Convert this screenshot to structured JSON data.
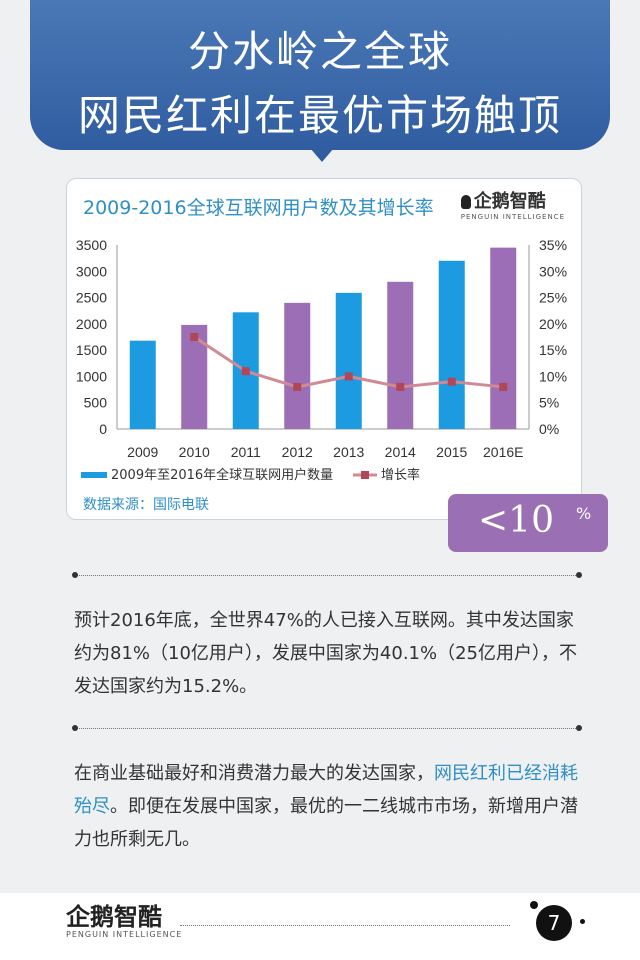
{
  "header": {
    "line1": "分水岭之全球",
    "line2": "网民红利在最优市场触顶"
  },
  "brand": {
    "name": "企鹅智酷",
    "tagline": "PENGUIN INTELLIGENCE"
  },
  "chart_data": {
    "type": "bar",
    "title": "2009-2016全球互联网用户数及其增长率",
    "categories": [
      "2009",
      "2010",
      "2011",
      "2012",
      "2013",
      "2014",
      "2015",
      "2016E"
    ],
    "y_left_ticks": [
      "3500",
      "3000",
      "2500",
      "2000",
      "1500",
      "1000",
      "500",
      "0"
    ],
    "y_right_ticks": [
      "35%",
      "30%",
      "25%",
      "20%",
      "15%",
      "10%",
      "5%",
      "0%"
    ],
    "ylim_left": [
      0,
      3500
    ],
    "ylim_right": [
      0,
      35
    ],
    "series": [
      {
        "name": "2009年至2016年全球互联网用户数量",
        "type": "bar",
        "axis": "left",
        "values": [
          1680,
          1980,
          2220,
          2400,
          2590,
          2800,
          3200,
          3450
        ],
        "colors": [
          "#1c9be0",
          "#9b6eb5",
          "#1c9be0",
          "#9b6eb5",
          "#1c9be0",
          "#9b6eb5",
          "#1c9be0",
          "#9b6eb5"
        ]
      },
      {
        "name": "增长率",
        "type": "line",
        "axis": "right",
        "color": "#d18a93",
        "marker_color": "#b04758",
        "values": [
          null,
          17.5,
          11,
          8,
          10,
          8,
          9,
          8
        ]
      }
    ],
    "legend_position": "bottom",
    "source": "数据来源：国际电联"
  },
  "badge": {
    "value": "<10",
    "unit": "%"
  },
  "paragraph1": "预计2016年底，全世界47%的人已接入互联网。其中发达国家约为81%（10亿用户），发展中国家为40.1%（25亿用户），不发达国家约为15.2%。",
  "paragraph2": {
    "before": "在商业基础最好和消费潜力最大的发达国家，",
    "highlight": "网民红利已经消耗殆尽",
    "after": "。即便在发展中国家，最优的一二线城市市场，新增用户潜力也所剩无几。"
  },
  "footer": {
    "page": "7"
  },
  "colors": {
    "header": "#3a6aae",
    "accent": "#2f8fc6",
    "purple": "#9a6fb4",
    "blue_bar": "#1c9be0"
  }
}
